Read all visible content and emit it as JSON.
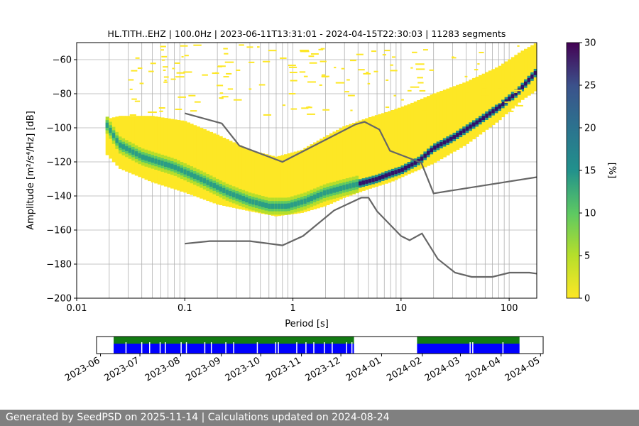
{
  "chart_data": {
    "type": "heatmap",
    "title": "HL.TITH..EHZ | 100.0Hz | 2023-06-11T13:31:01 - 2024-04-15T22:30:03 | 11283 segments",
    "xlabel": "Period [s]",
    "ylabel": "Amplitude [m²/s⁴/Hz] [dB]",
    "x_scale": "log",
    "xlim": [
      0.01,
      180
    ],
    "ylim": [
      -200,
      -50
    ],
    "grid": true,
    "x_ticks": [
      {
        "v": 0.01,
        "label": "0.01"
      },
      {
        "v": 0.1,
        "label": "0.1"
      },
      {
        "v": 1,
        "label": "1"
      },
      {
        "v": 10,
        "label": "10"
      },
      {
        "v": 100,
        "label": "100"
      }
    ],
    "y_ticks": [
      -60,
      -80,
      -100,
      -120,
      -140,
      -160,
      -180,
      -200
    ],
    "colorbar": {
      "label": "[%]",
      "range": [
        0,
        30
      ],
      "ticks": [
        0,
        5,
        10,
        15,
        20,
        25,
        30
      ],
      "colors": [
        "#fde725",
        "#5ec962",
        "#21918c",
        "#3b528b",
        "#440154"
      ]
    },
    "series": [
      {
        "role": "model-high",
        "color": "#666666",
        "points": [
          [
            0.1,
            -91.5
          ],
          [
            0.22,
            -97.4
          ],
          [
            0.32,
            -110.5
          ],
          [
            0.8,
            -120
          ],
          [
            3.8,
            -98
          ],
          [
            4.6,
            -96.5
          ],
          [
            6.3,
            -101
          ],
          [
            7.9,
            -113.5
          ],
          [
            15.4,
            -120.5
          ],
          [
            20,
            -138.5
          ],
          [
            354,
            -126
          ]
        ]
      },
      {
        "role": "model-low",
        "color": "#666666",
        "points": [
          [
            0.1,
            -168
          ],
          [
            0.17,
            -166.5
          ],
          [
            0.4,
            -166.5
          ],
          [
            0.8,
            -169
          ],
          [
            1.24,
            -163.5
          ],
          [
            2.4,
            -148.5
          ],
          [
            4.3,
            -141
          ],
          [
            5.0,
            -141
          ],
          [
            6.0,
            -149
          ],
          [
            10,
            -163.5
          ],
          [
            12,
            -166
          ],
          [
            15.6,
            -162
          ],
          [
            21.9,
            -177
          ],
          [
            31.6,
            -185
          ],
          [
            45,
            -187.5
          ],
          [
            70,
            -187.5
          ],
          [
            101,
            -185
          ],
          [
            154,
            -185
          ],
          [
            200,
            -186
          ]
        ]
      }
    ],
    "psd_mode_curve": [
      [
        0.0185,
        -97
      ],
      [
        0.025,
        -110
      ],
      [
        0.04,
        -117
      ],
      [
        0.08,
        -123
      ],
      [
        0.14,
        -130
      ],
      [
        0.25,
        -138
      ],
      [
        0.4,
        -143
      ],
      [
        0.6,
        -146
      ],
      [
        0.9,
        -146
      ],
      [
        1.3,
        -143
      ],
      [
        2,
        -138
      ],
      [
        3,
        -135
      ],
      [
        4,
        -133
      ],
      [
        6,
        -130
      ],
      [
        8,
        -127
      ],
      [
        10,
        -125
      ],
      [
        15,
        -119
      ],
      [
        20,
        -112
      ],
      [
        30,
        -106
      ],
      [
        50,
        -97
      ],
      [
        80,
        -88
      ],
      [
        120,
        -79
      ],
      [
        180,
        -67
      ]
    ],
    "psd_band": [
      [
        0.0185,
        -95,
        -115
      ],
      [
        0.025,
        -93,
        -124
      ],
      [
        0.05,
        -93,
        -132
      ],
      [
        0.1,
        -96,
        -138
      ],
      [
        0.2,
        -104,
        -145
      ],
      [
        0.4,
        -113,
        -149
      ],
      [
        0.7,
        -117,
        -152
      ],
      [
        1.2,
        -113,
        -150
      ],
      [
        2,
        -105,
        -146
      ],
      [
        3,
        -99,
        -141
      ],
      [
        5,
        -94,
        -136
      ],
      [
        8,
        -90,
        -132
      ],
      [
        12,
        -86,
        -127
      ],
      [
        20,
        -80,
        -121
      ],
      [
        40,
        -73,
        -110
      ],
      [
        80,
        -64,
        -96
      ],
      [
        130,
        -55,
        -84
      ],
      [
        180,
        -50,
        -78
      ]
    ],
    "availability": {
      "ticks": [
        "2023-06",
        "2023-07",
        "2023-08",
        "2023-09",
        "2023-10",
        "2023-11",
        "2023-12",
        "2024-01",
        "2024-02",
        "2024-03",
        "2024-04",
        "2024-05"
      ],
      "tick_dates": [
        "2023-06-01",
        "2023-07-01",
        "2023-08-01",
        "2023-09-01",
        "2023-10-01",
        "2023-11-01",
        "2023-12-01",
        "2024-01-01",
        "2024-02-01",
        "2024-03-01",
        "2024-04-01",
        "2024-05-01"
      ],
      "range": [
        "2023-05-29",
        "2024-05-03"
      ],
      "segments": [
        [
          "2023-06-11",
          "2023-12-11"
        ],
        [
          "2024-01-28",
          "2024-04-15"
        ]
      ],
      "gaps": [
        "2023-06-20",
        "2023-07-02",
        "2023-07-08",
        "2023-07-16",
        "2023-07-20",
        "2023-08-01",
        "2023-08-05",
        "2023-08-19",
        "2023-08-24",
        "2023-09-04",
        "2023-09-10",
        "2023-09-28",
        "2023-10-12",
        "2023-10-14",
        "2023-10-28",
        "2023-11-04",
        "2023-11-10",
        "2023-11-18",
        "2023-11-24",
        "2023-12-05",
        "2023-12-09",
        "2024-03-08",
        "2024-03-10",
        "2024-04-02"
      ],
      "colors": {
        "top": "#137b13",
        "bottom": "#0000ff"
      }
    }
  },
  "footer": {
    "text": "Generated by SeedPSD on 2025-11-14 | Calculations updated on 2024-08-24"
  }
}
